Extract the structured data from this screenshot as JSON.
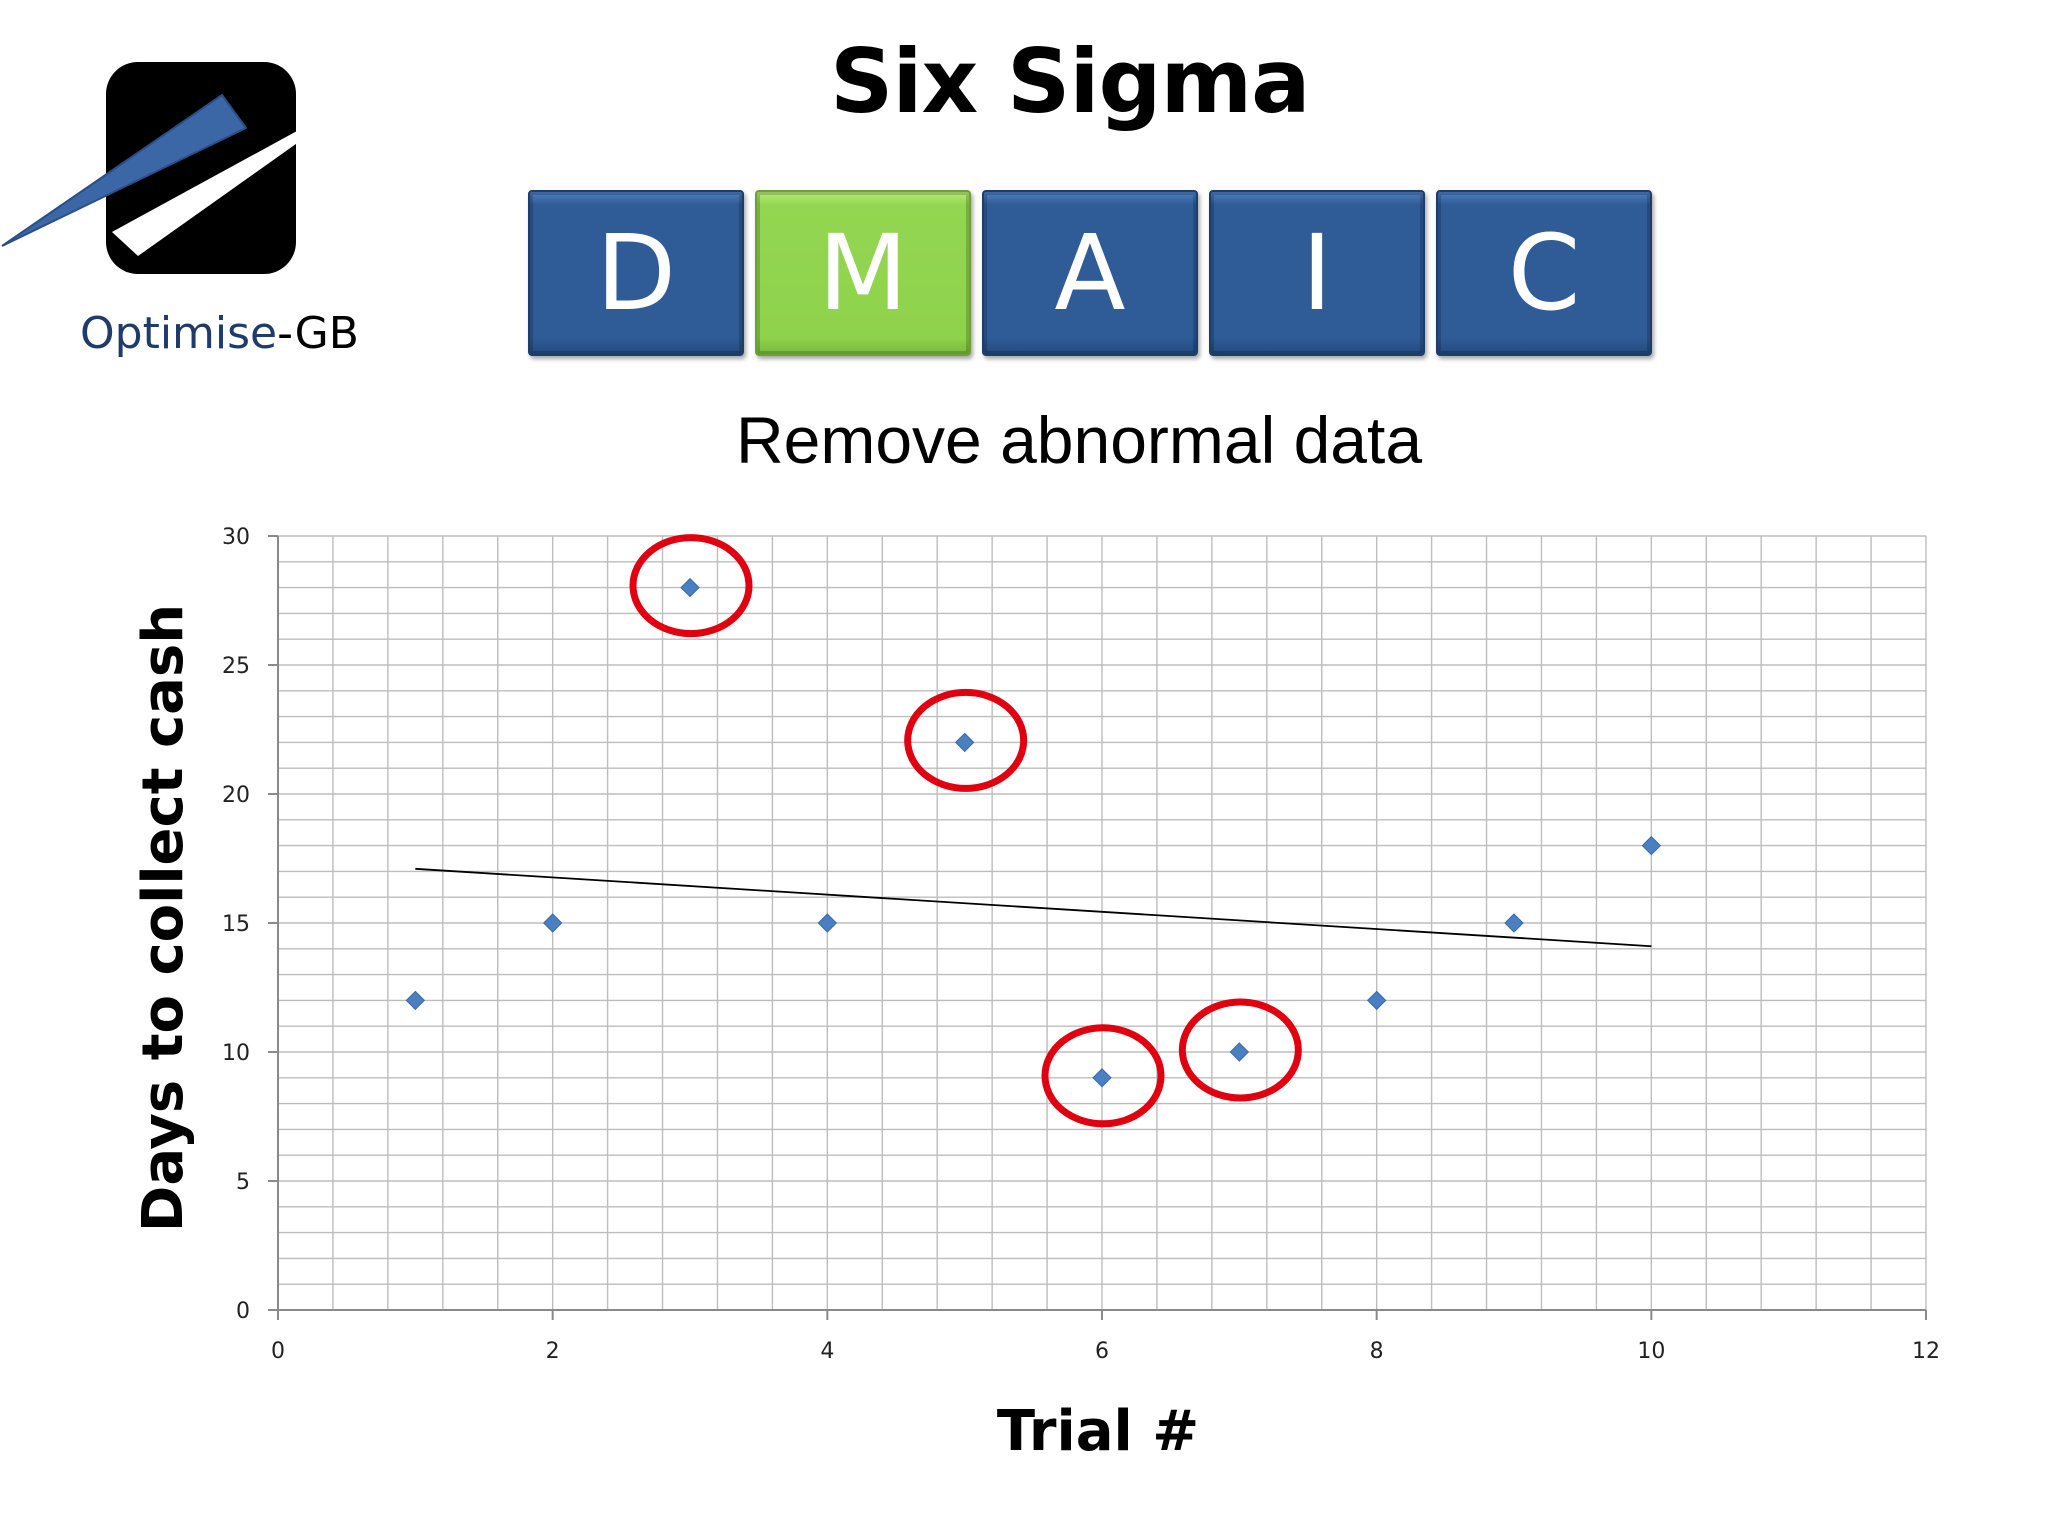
{
  "logo": {
    "name_accent": "Optimise",
    "name_rest": "-GB"
  },
  "header": {
    "title": "Six Sigma"
  },
  "dmaic": {
    "phases": [
      {
        "letter": "D",
        "active": false
      },
      {
        "letter": "M",
        "active": true
      },
      {
        "letter": "A",
        "active": false
      },
      {
        "letter": "I",
        "active": false
      },
      {
        "letter": "C",
        "active": false
      }
    ],
    "active_color": "#93d651",
    "inactive_color": "#2f5b97"
  },
  "slide": {
    "subtitle": "Remove abnormal data"
  },
  "chart_data": {
    "type": "scatter",
    "title": "",
    "xlabel": "Trial #",
    "ylabel": "Days to collect cash",
    "xlim": [
      0,
      12
    ],
    "ylim": [
      0,
      30
    ],
    "x_ticks": [
      0,
      2,
      4,
      6,
      8,
      10,
      12
    ],
    "y_ticks": [
      0,
      5,
      10,
      15,
      20,
      25,
      30
    ],
    "grid": true,
    "legend": "none",
    "marker": "diamond",
    "marker_color": "#4a7fc1",
    "series": [
      {
        "x": [
          1,
          2,
          3,
          4,
          5,
          6,
          7,
          8,
          9,
          10
        ],
        "y": [
          12,
          15,
          28,
          15,
          22,
          9,
          10,
          12,
          15,
          18
        ]
      }
    ],
    "trendline": {
      "type": "linear",
      "x": [
        1,
        10
      ],
      "y": [
        17.1,
        14.1
      ],
      "color": "#000000"
    },
    "highlighted_points": [
      {
        "x": 3,
        "y": 28
      },
      {
        "x": 5,
        "y": 22
      },
      {
        "x": 6,
        "y": 9
      },
      {
        "x": 7,
        "y": 10
      }
    ],
    "highlight_color": "#e0000f"
  }
}
